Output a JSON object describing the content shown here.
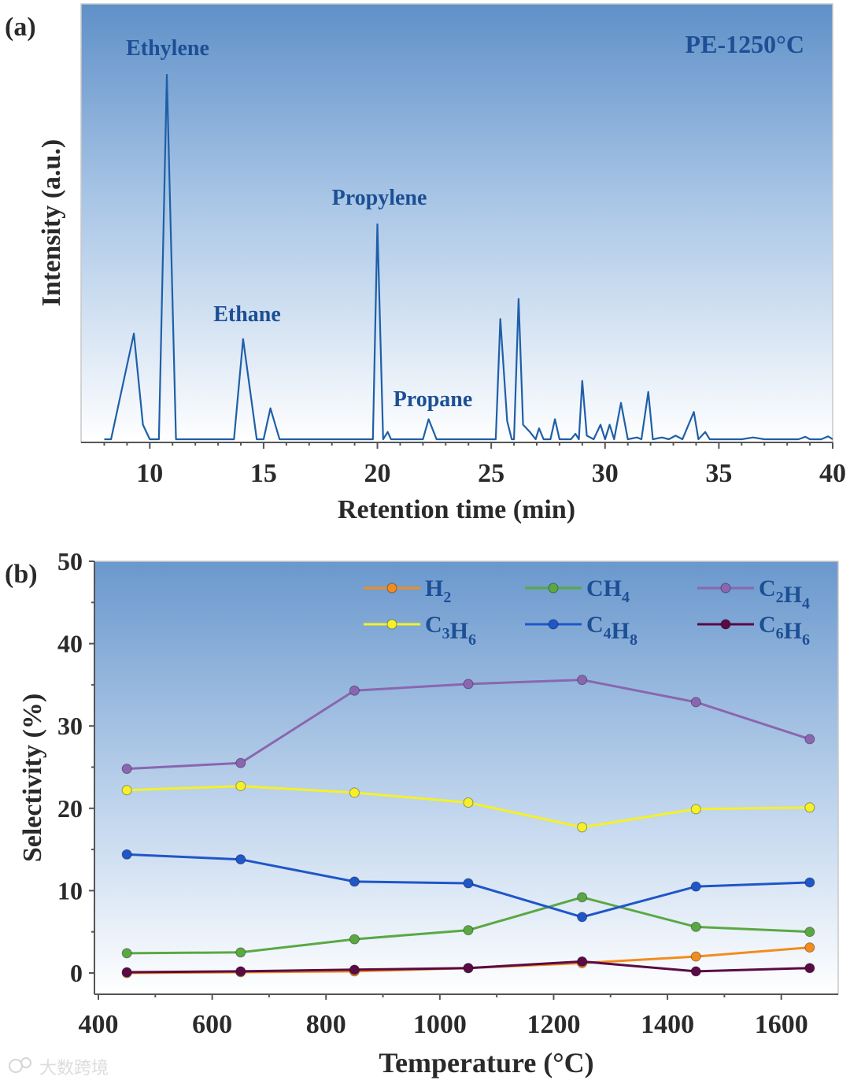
{
  "chart_data": [
    {
      "id": "a",
      "type": "line",
      "panel_label": "(a)",
      "title": "PE-1250°C",
      "xlabel": "Retention time (min)",
      "ylabel": "Intensity (a.u.)",
      "xlim": [
        7.5,
        40
      ],
      "ylim": [
        0,
        100
      ],
      "x_ticks": [
        10,
        15,
        20,
        25,
        30,
        35,
        40
      ],
      "y_ticks_shown": false,
      "annotations": [
        {
          "text": "Ethylene",
          "x": 10.8,
          "y": 100
        },
        {
          "text": "Ethane",
          "x": 14.1,
          "y": 33
        },
        {
          "text": "Propylene",
          "x": 20.1,
          "y": 63
        },
        {
          "text": "Propane",
          "x": 22.4,
          "y": 10
        }
      ],
      "series": [
        {
          "name": "chromatogram",
          "color": "#1f5fa8",
          "points": [
            [
              8.0,
              0
            ],
            [
              8.3,
              0
            ],
            [
              9.3,
              29
            ],
            [
              9.7,
              4
            ],
            [
              10.0,
              0
            ],
            [
              10.4,
              0
            ],
            [
              10.75,
              100
            ],
            [
              11.15,
              0
            ],
            [
              13.0,
              0
            ],
            [
              13.7,
              0
            ],
            [
              14.1,
              27.5
            ],
            [
              14.7,
              0
            ],
            [
              15.0,
              0
            ],
            [
              15.3,
              8.5
            ],
            [
              15.7,
              0
            ],
            [
              19.6,
              0
            ],
            [
              19.8,
              0
            ],
            [
              20.0,
              59
            ],
            [
              20.25,
              0
            ],
            [
              20.45,
              2
            ],
            [
              20.6,
              0
            ],
            [
              21.5,
              0
            ],
            [
              22.0,
              0
            ],
            [
              22.25,
              5.5
            ],
            [
              22.6,
              0
            ],
            [
              25.2,
              0
            ],
            [
              25.4,
              33
            ],
            [
              25.7,
              5
            ],
            [
              25.9,
              0
            ],
            [
              26.0,
              0
            ],
            [
              26.2,
              38.5
            ],
            [
              26.4,
              4
            ],
            [
              26.7,
              2
            ],
            [
              26.95,
              0
            ],
            [
              27.1,
              3
            ],
            [
              27.3,
              0
            ],
            [
              27.6,
              0
            ],
            [
              27.8,
              5.5
            ],
            [
              28.0,
              0
            ],
            [
              28.5,
              0
            ],
            [
              28.7,
              1.5
            ],
            [
              28.85,
              0
            ],
            [
              29.0,
              16
            ],
            [
              29.2,
              1
            ],
            [
              29.5,
              0
            ],
            [
              29.8,
              4
            ],
            [
              30.0,
              0
            ],
            [
              30.2,
              4
            ],
            [
              30.4,
              0
            ],
            [
              30.7,
              10
            ],
            [
              31.0,
              0
            ],
            [
              31.4,
              0.5
            ],
            [
              31.6,
              0
            ],
            [
              31.9,
              13
            ],
            [
              32.1,
              0
            ],
            [
              32.5,
              0.5
            ],
            [
              32.8,
              0
            ],
            [
              33.1,
              1
            ],
            [
              33.4,
              0
            ],
            [
              33.9,
              7.5
            ],
            [
              34.1,
              0
            ],
            [
              34.4,
              2
            ],
            [
              34.6,
              0
            ],
            [
              35.0,
              0
            ],
            [
              36.0,
              0
            ],
            [
              36.5,
              0.5
            ],
            [
              37.0,
              0
            ],
            [
              38.5,
              0
            ],
            [
              38.8,
              0.7
            ],
            [
              39.0,
              0
            ],
            [
              39.5,
              0
            ],
            [
              39.8,
              0.8
            ],
            [
              40.0,
              0
            ]
          ]
        }
      ]
    },
    {
      "id": "b",
      "type": "line",
      "panel_label": "(b)",
      "xlabel": "Temperature (°C)",
      "ylabel": "Selectivity (%)",
      "xlim": [
        400,
        1700
      ],
      "ylim": [
        0,
        50
      ],
      "x_ticks": [
        400,
        600,
        800,
        1000,
        1200,
        1400,
        1600
      ],
      "y_ticks": [
        0,
        10,
        20,
        30,
        40,
        50
      ],
      "x": [
        450,
        650,
        850,
        1050,
        1250,
        1450,
        1650
      ],
      "legend_position": "top",
      "series": [
        {
          "name": "H",
          "sub": "2",
          "legend_text": "H2",
          "color": "#f28c1e",
          "values": [
            0,
            0.1,
            0.2,
            0.6,
            1.2,
            2.0,
            3.1
          ]
        },
        {
          "name": "CH",
          "sub": "4",
          "legend_text": "CH4",
          "color": "#5aa843",
          "values": [
            2.4,
            2.5,
            4.1,
            5.2,
            9.2,
            5.6,
            5.0
          ]
        },
        {
          "name": "C2H4",
          "legend_text": "C2H4",
          "color": "#8a66b0",
          "values": [
            24.8,
            25.5,
            34.3,
            35.1,
            35.6,
            32.9,
            28.4
          ]
        },
        {
          "name": "C3H6",
          "legend_text": "C3H6",
          "color": "#f5f02a",
          "values": [
            22.2,
            22.7,
            21.9,
            20.7,
            17.7,
            19.9,
            20.1
          ]
        },
        {
          "name": "C4H8",
          "legend_text": "C4H8",
          "color": "#1f56c8",
          "values": [
            14.4,
            13.8,
            11.1,
            10.9,
            6.8,
            10.5,
            11.0
          ]
        },
        {
          "name": "C6H6",
          "legend_text": "C6H6",
          "color": "#5a0a45",
          "values": [
            0.1,
            0.2,
            0.4,
            0.6,
            1.4,
            0.2,
            0.6
          ]
        }
      ]
    }
  ],
  "watermark": "大数跨境"
}
